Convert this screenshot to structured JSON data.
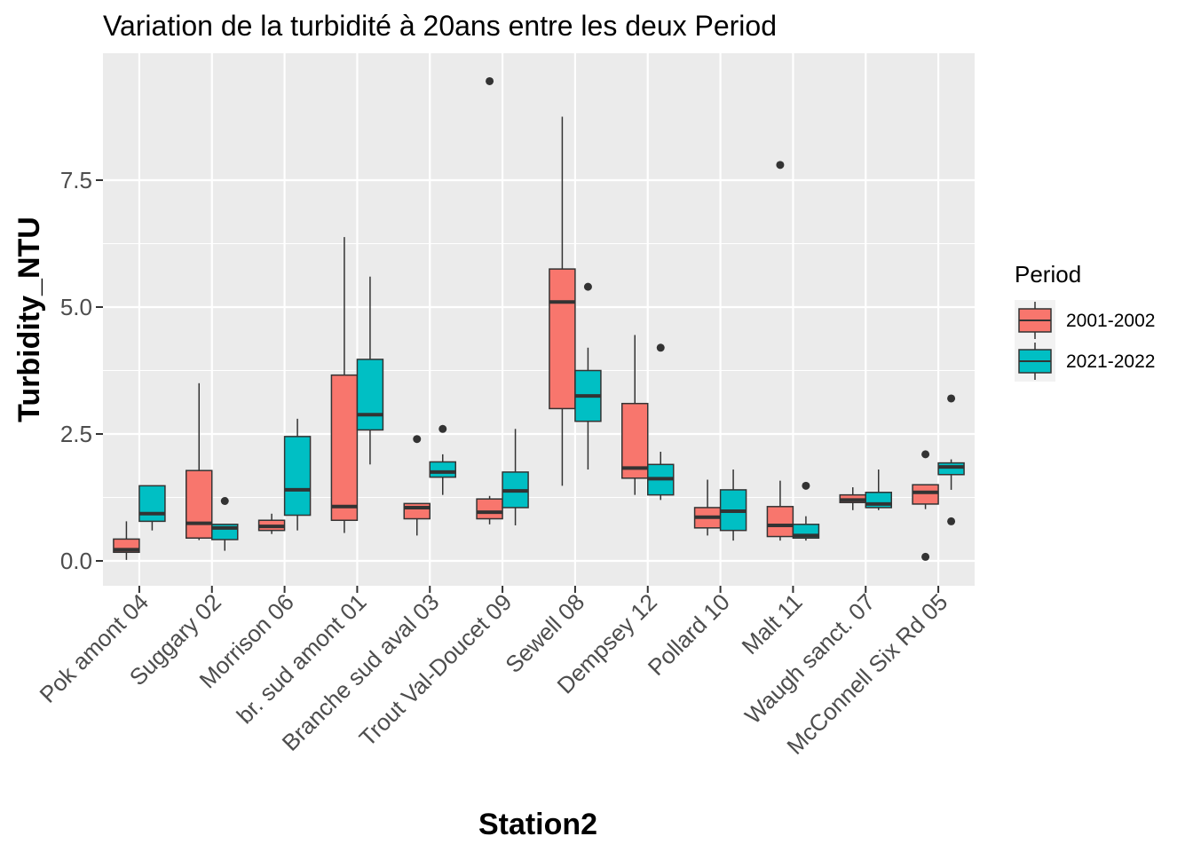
{
  "chart_data": {
    "type": "box",
    "title": "Variation  de la turbidité à 20ans entre les deux Period",
    "xlabel": "Station2",
    "ylabel": "Turbidity_NTU",
    "ylim": [
      -0.5,
      9.95
    ],
    "yticks": [
      0.0,
      2.5,
      5.0,
      7.5
    ],
    "ytick_labels": [
      "0.0",
      "2.5",
      "5.0",
      "7.5"
    ],
    "grid": true,
    "legend": {
      "title": "Period",
      "position": "right",
      "items": [
        {
          "label": "2001-2002",
          "color": "#F8766D"
        },
        {
          "label": "2021-2022",
          "color": "#00BFC4"
        }
      ]
    },
    "categories": [
      "Pok amont 04",
      "Suggary 02",
      "Morrison 06",
      "br. sud amont 01",
      "Branche sud aval 03",
      "Trout Val-Doucet 09",
      "Sewell 08",
      "Dempsey 12",
      "Pollard 10",
      "Malt 11",
      "Waugh sanct. 07",
      "McConnell Six Rd 05"
    ],
    "series": [
      {
        "name": "2001-2002",
        "color": "#F8766D",
        "boxes": [
          {
            "min": 0.02,
            "q1": 0.17,
            "median": 0.22,
            "q3": 0.43,
            "max": 0.78,
            "outliers": []
          },
          {
            "min": 0.41,
            "q1": 0.45,
            "median": 0.74,
            "q3": 1.78,
            "max": 3.5,
            "outliers": []
          },
          {
            "min": 0.53,
            "q1": 0.6,
            "median": 0.68,
            "q3": 0.8,
            "max": 0.93,
            "outliers": []
          },
          {
            "min": 0.55,
            "q1": 0.8,
            "median": 1.07,
            "q3": 3.66,
            "max": 6.38,
            "outliers": []
          },
          {
            "min": 0.5,
            "q1": 0.83,
            "median": 1.05,
            "q3": 1.13,
            "max": 1.13,
            "outliers": [
              2.4
            ]
          },
          {
            "min": 0.72,
            "q1": 0.83,
            "median": 0.96,
            "q3": 1.22,
            "max": 1.28,
            "outliers": [
              9.45
            ]
          },
          {
            "min": 1.48,
            "q1": 3.0,
            "median": 5.1,
            "q3": 5.75,
            "max": 8.75,
            "outliers": []
          },
          {
            "min": 1.3,
            "q1": 1.63,
            "median": 1.83,
            "q3": 3.1,
            "max": 4.45,
            "outliers": []
          },
          {
            "min": 0.5,
            "q1": 0.65,
            "median": 0.86,
            "q3": 1.05,
            "max": 1.6,
            "outliers": []
          },
          {
            "min": 0.4,
            "q1": 0.48,
            "median": 0.7,
            "q3": 1.07,
            "max": 1.58,
            "outliers": [
              7.8
            ]
          },
          {
            "min": 1.0,
            "q1": 1.15,
            "median": 1.2,
            "q3": 1.3,
            "max": 1.45,
            "outliers": []
          },
          {
            "min": 1.02,
            "q1": 1.12,
            "median": 1.35,
            "q3": 1.5,
            "max": 1.5,
            "outliers": [
              0.08,
              2.1
            ]
          }
        ]
      },
      {
        "name": "2021-2022",
        "color": "#00BFC4",
        "boxes": [
          {
            "min": 0.6,
            "q1": 0.78,
            "median": 0.93,
            "q3": 1.48,
            "max": 1.48,
            "outliers": []
          },
          {
            "min": 0.2,
            "q1": 0.42,
            "median": 0.65,
            "q3": 0.72,
            "max": 0.72,
            "outliers": [
              1.18
            ]
          },
          {
            "min": 0.6,
            "q1": 0.9,
            "median": 1.4,
            "q3": 2.45,
            "max": 2.8,
            "outliers": []
          },
          {
            "min": 1.9,
            "q1": 2.58,
            "median": 2.88,
            "q3": 3.97,
            "max": 5.6,
            "outliers": []
          },
          {
            "min": 1.3,
            "q1": 1.65,
            "median": 1.75,
            "q3": 1.95,
            "max": 2.1,
            "outliers": [
              2.6
            ]
          },
          {
            "min": 0.7,
            "q1": 1.05,
            "median": 1.38,
            "q3": 1.75,
            "max": 2.6,
            "outliers": []
          },
          {
            "min": 1.8,
            "q1": 2.75,
            "median": 3.25,
            "q3": 3.75,
            "max": 4.2,
            "outliers": [
              5.4
            ]
          },
          {
            "min": 1.2,
            "q1": 1.3,
            "median": 1.62,
            "q3": 1.9,
            "max": 2.15,
            "outliers": [
              4.2
            ]
          },
          {
            "min": 0.4,
            "q1": 0.6,
            "median": 0.98,
            "q3": 1.4,
            "max": 1.8,
            "outliers": []
          },
          {
            "min": 0.4,
            "q1": 0.45,
            "median": 0.5,
            "q3": 0.72,
            "max": 0.88,
            "outliers": [
              1.48
            ]
          },
          {
            "min": 1.0,
            "q1": 1.05,
            "median": 1.12,
            "q3": 1.35,
            "max": 1.8,
            "outliers": []
          },
          {
            "min": 1.4,
            "q1": 1.7,
            "median": 1.85,
            "q3": 1.93,
            "max": 2.0,
            "outliers": [
              0.78,
              3.2
            ]
          }
        ]
      }
    ]
  }
}
